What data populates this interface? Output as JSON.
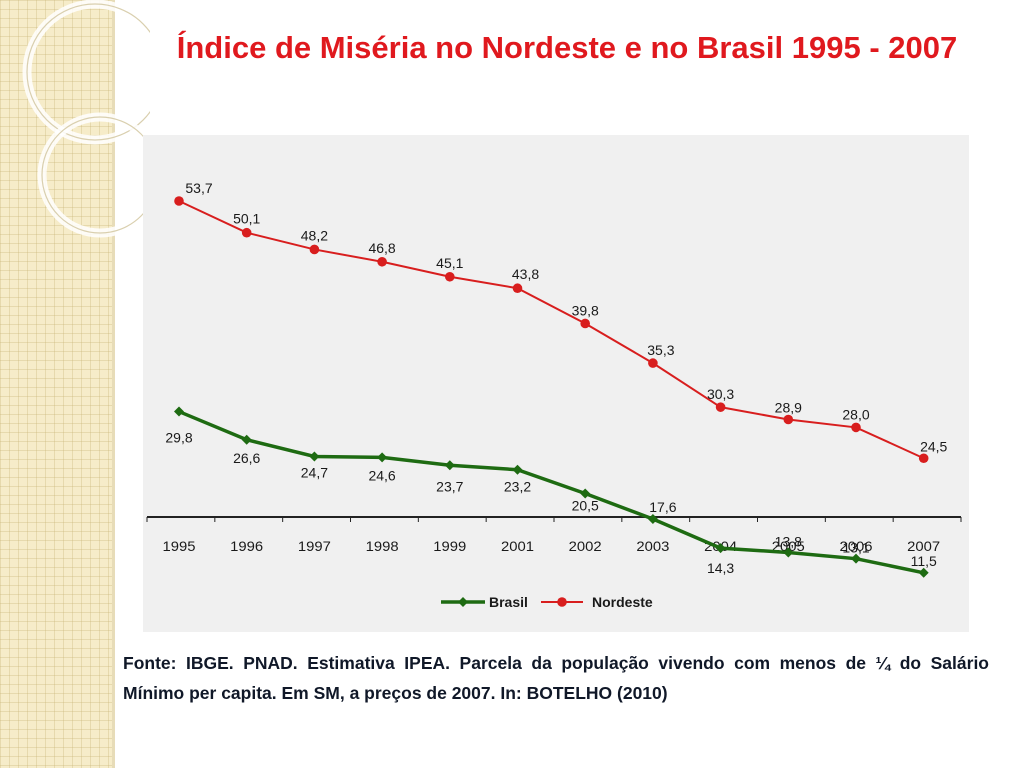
{
  "title": "Índice de Miséria no Nordeste e no Brasil 1995 - 2007",
  "source_text": "Fonte: IBGE. PNAD. Estimativa IPEA. Parcela da população vivendo com menos de ¼ do Salário Mínimo per capita. Em SM, a preços de 2007. In: BOTELHO (2010)",
  "colors": {
    "title": "#e0191e",
    "brasil": "#1e6b12",
    "nordeste": "#d81e1e",
    "chart_bg": "#f0f0f0"
  },
  "chart_data": {
    "type": "line",
    "categories": [
      "1995",
      "1996",
      "1997",
      "1998",
      "1999",
      "2001",
      "2002",
      "2003",
      "2004",
      "2005",
      "2006",
      "2007"
    ],
    "series": [
      {
        "name": "Brasil",
        "marker": "diamond",
        "color": "#1e6b12",
        "values": [
          29.8,
          26.6,
          24.7,
          24.6,
          23.7,
          23.2,
          20.5,
          17.6,
          14.3,
          13.8,
          13.1,
          11.5
        ],
        "labels": [
          "29,8",
          "26,6",
          "24,7",
          "24,6",
          "23,7",
          "23,2",
          "20,5",
          "17,6",
          "14,3",
          "13,8",
          "13,1",
          "11,5"
        ]
      },
      {
        "name": "Nordeste",
        "marker": "circle",
        "color": "#d81e1e",
        "values": [
          53.7,
          50.1,
          48.2,
          46.8,
          45.1,
          43.8,
          39.8,
          35.3,
          30.3,
          28.9,
          28.0,
          24.5
        ],
        "labels": [
          "53,7",
          "50,1",
          "48,2",
          "46,8",
          "45,1",
          "43,8",
          "39,8",
          "35,3",
          "30,3",
          "28,9",
          "28,0",
          "24,5"
        ]
      }
    ],
    "legend_position": "bottom",
    "grid": false
  }
}
